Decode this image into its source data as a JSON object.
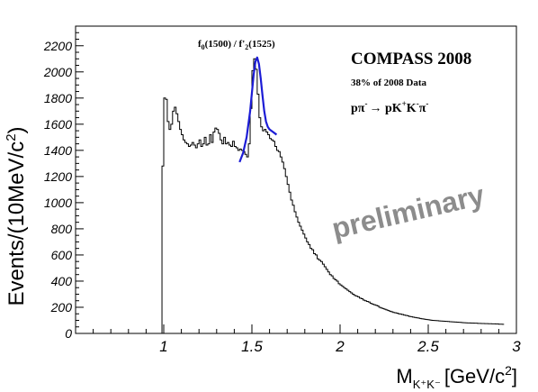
{
  "chart_data": {
    "type": "histogram",
    "xlabel_main": "M",
    "xlabel_sub": "K⁺K⁻",
    "xlabel_units": "[GeV/c",
    "xlabel_units_sup": "2",
    "xlabel_units_end": "]",
    "ylabel": "Events/(10MeV/c",
    "ylabel_sup": "2",
    "ylabel_end": ")",
    "xlim": [
      0.5,
      3.0
    ],
    "ylim": [
      0,
      2350
    ],
    "x_ticks": [
      1,
      1.5,
      2,
      2.5,
      3
    ],
    "x_tick_labels": [
      "1",
      "1.5",
      "2",
      "2.5",
      "3"
    ],
    "y_ticks": [
      0,
      200,
      400,
      600,
      800,
      1000,
      1200,
      1400,
      1600,
      1800,
      2000,
      2200
    ],
    "y_tick_labels": [
      "0",
      "200",
      "400",
      "600",
      "800",
      "1000",
      "1200",
      "1400",
      "1600",
      "1800",
      "2000",
      "2200"
    ],
    "annotations": {
      "experiment": "COMPASS 2008",
      "data_fraction": "38% of 2008 Data",
      "reaction_p": "p",
      "reaction_pi": "π",
      "reaction_minus": "-",
      "reaction_arrow": "→",
      "reaction_rhs": " pK",
      "reaction_kplus": "+",
      "reaction_k2": "K",
      "reaction_kminus": "-",
      "reaction_pi2": "π",
      "reaction_minus2": "-",
      "peak_label_a": "f",
      "peak_label_a_sub": "0",
      "peak_label_a_rest": "(1500) / f'",
      "peak_label_b_sub": "2",
      "peak_label_b_rest": "(1525)",
      "watermark": "preliminary"
    },
    "series": [
      {
        "style": "histogram",
        "color": "#000000",
        "bin_width": 0.01,
        "x_start": 0.98,
        "values": [
          0,
          1280,
          1800,
          1790,
          1620,
          1560,
          1600,
          1700,
          1730,
          1680,
          1620,
          1560,
          1520,
          1480,
          1460,
          1450,
          1430,
          1440,
          1460,
          1440,
          1420,
          1450,
          1480,
          1430,
          1450,
          1500,
          1440,
          1450,
          1520,
          1460,
          1540,
          1570,
          1560,
          1530,
          1480,
          1450,
          1500,
          1450,
          1460,
          1440,
          1430,
          1470,
          1430,
          1420,
          1400,
          1410,
          1400,
          1390,
          1370,
          1350,
          1450,
          1720,
          2010,
          2100,
          2020,
          1830,
          1650,
          1580,
          1550,
          1560,
          1540,
          1520,
          1490,
          1480,
          1470,
          1430,
          1400,
          1390,
          1350,
          1310,
          1260,
          1200,
          1140,
          1080,
          1020,
          980,
          930,
          890,
          850,
          820,
          790,
          760,
          730,
          700,
          680,
          650,
          640,
          610,
          600,
          570,
          560,
          550,
          530,
          510,
          490,
          470,
          450,
          440,
          420,
          410,
          400,
          380,
          370,
          360,
          350,
          340,
          330,
          320,
          310,
          300,
          290,
          285,
          280,
          270,
          265,
          255,
          250,
          245,
          240,
          230,
          225,
          220,
          215,
          210,
          200,
          195,
          190,
          185,
          180,
          175,
          170,
          165,
          160,
          158,
          155,
          150,
          148,
          145,
          140,
          138,
          135,
          130,
          128,
          125,
          122,
          120,
          118,
          115,
          112,
          110,
          108,
          106,
          104,
          102,
          100,
          99,
          98,
          97,
          96,
          95,
          94,
          93,
          92,
          91,
          90,
          89,
          88,
          87,
          86,
          85,
          84,
          83,
          82,
          81,
          80,
          80,
          79,
          79,
          78,
          78,
          77,
          77,
          76,
          76,
          75,
          75,
          74,
          74,
          73,
          73,
          72,
          72,
          71,
          71,
          70
        ]
      },
      {
        "style": "fit",
        "color": "#1c1cd6",
        "x": [
          1.43,
          1.45,
          1.47,
          1.49,
          1.5,
          1.51,
          1.52,
          1.53,
          1.54,
          1.55,
          1.56,
          1.57,
          1.58,
          1.59,
          1.6,
          1.62,
          1.64
        ],
        "y": [
          1310,
          1380,
          1500,
          1700,
          1840,
          1980,
          2080,
          2110,
          2060,
          1950,
          1820,
          1700,
          1620,
          1580,
          1560,
          1540,
          1520
        ]
      }
    ]
  }
}
